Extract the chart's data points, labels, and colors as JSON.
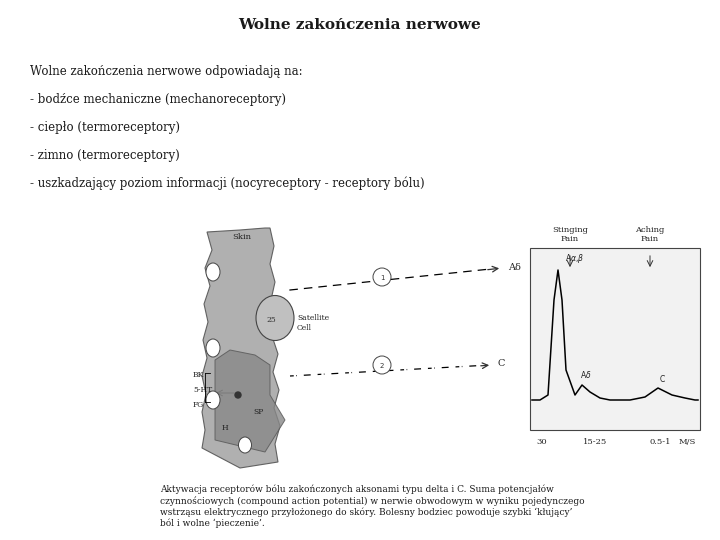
{
  "title": "Wolne zakończenia nerwowe",
  "title_fontsize": 11,
  "background_color": "#ffffff",
  "text_color": "#1a1a1a",
  "body_lines": [
    "Wolne zakończenia nerwowe odpowiadają na:",
    "- bodźce mechaniczne (mechanoreceptory)",
    "- ciepło (termoreceptory)",
    "- zimno (termoreceptory)",
    "- uszkadzający poziom informacji (nocyreceptory - receptory bólu)"
  ],
  "body_fontsize": 8.5,
  "caption_text": "Aktywacja receptorów bólu zakończonych aksonami typu delta i C. Suma potencjałów\nczynnościowych (compound action potential) w nerwie obwodowym w wyniku pojedynczego\nwstrząsu elektrycznego przyłożonego do skóry. Bolesny bodziec powoduje szybki ‘kłujący’\nból i wolne ‘pieczenie’.",
  "caption_fontsize": 6.5,
  "fig_width": 7.2,
  "fig_height": 5.4,
  "skin_color": "#a8a8a8",
  "skin_edge_color": "#555555"
}
